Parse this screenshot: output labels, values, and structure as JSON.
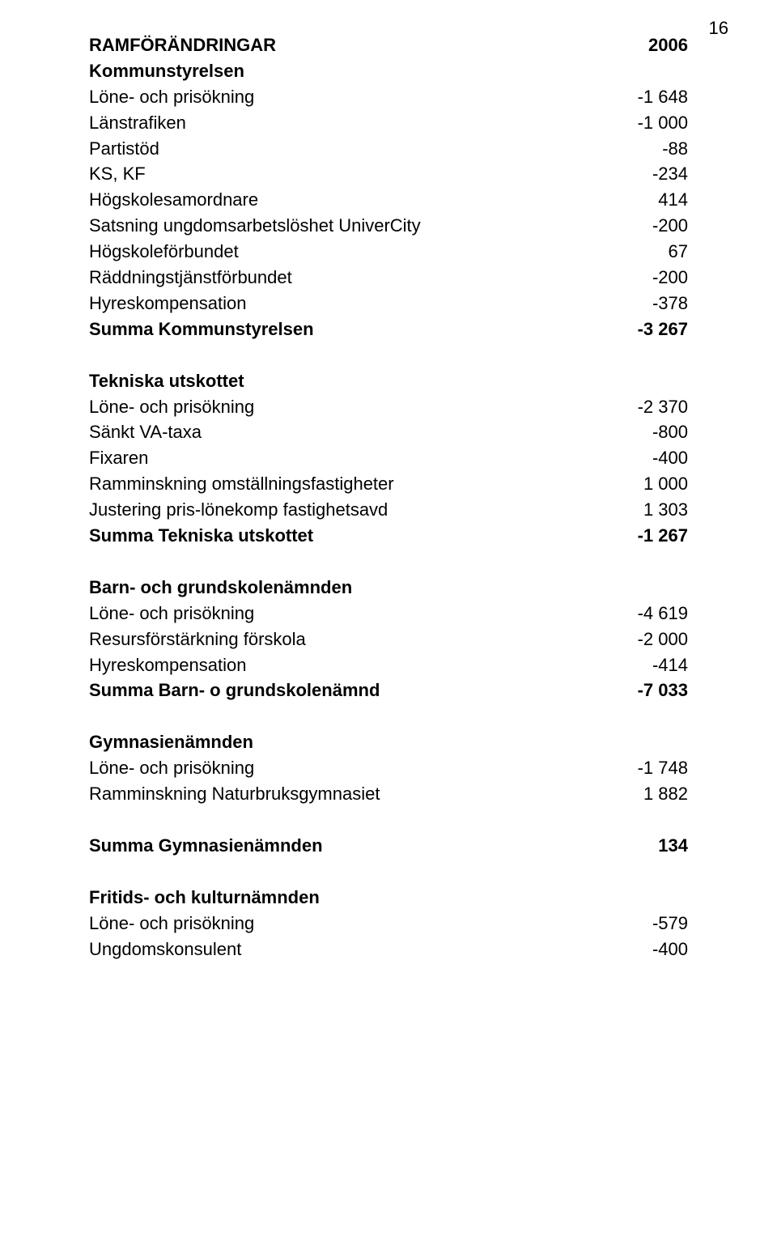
{
  "page_number": "16",
  "fontsize_pt": 17,
  "text_color": "#000000",
  "background_color": "#ffffff",
  "sections": [
    {
      "header": {
        "label": "RAMFÖRÄNDRINGAR",
        "value": "2006",
        "bold": true
      },
      "subheader": {
        "label": "Kommunstyrelsen",
        "bold": true
      },
      "rows": [
        {
          "label": "Löne- och prisökning",
          "value": "-1 648"
        },
        {
          "label": "Länstrafiken",
          "value": "-1 000"
        },
        {
          "label": "Partistöd",
          "value": "-88"
        },
        {
          "label": "KS, KF",
          "value": "-234"
        },
        {
          "label": "Högskolesamordnare",
          "value": "414"
        },
        {
          "label": "Satsning ungdomsarbetslöshet UniverCity",
          "value": "-200"
        },
        {
          "label": "Högskoleförbundet",
          "value": "67"
        },
        {
          "label": "Räddningstjänstförbundet",
          "value": "-200"
        },
        {
          "label": "Hyreskompensation",
          "value": "-378"
        }
      ],
      "total": {
        "label": "Summa Kommunstyrelsen",
        "value": "-3 267",
        "bold": true
      }
    },
    {
      "subheader": {
        "label": "Tekniska utskottet",
        "bold": true
      },
      "rows": [
        {
          "label": "Löne- och prisökning",
          "value": "-2 370"
        },
        {
          "label": "Sänkt VA-taxa",
          "value": "-800"
        },
        {
          "label": "Fixaren",
          "value": "-400"
        },
        {
          "label": "Ramminskning omställningsfastigheter",
          "value": "1 000"
        },
        {
          "label": "Justering pris-lönekomp fastighetsavd",
          "value": "1 303"
        }
      ],
      "total": {
        "label": "Summa Tekniska utskottet",
        "value": "-1 267",
        "bold": true
      }
    },
    {
      "subheader": {
        "label": "Barn- och grundskolenämnden",
        "bold": true
      },
      "rows": [
        {
          "label": "Löne- och prisökning",
          "value": "-4 619"
        },
        {
          "label": "Resursförstärkning förskola",
          "value": "-2 000"
        },
        {
          "label": "Hyreskompensation",
          "value": "-414"
        }
      ],
      "total": {
        "label": "Summa Barn- o grundskolenämnd",
        "value": "-7 033",
        "bold": true
      }
    },
    {
      "subheader": {
        "label": "Gymnasienämnden",
        "bold": true
      },
      "rows": [
        {
          "label": "Löne- och prisökning",
          "value": "-1 748"
        },
        {
          "label": "Ramminskning Naturbruksgymnasiet",
          "value": "1 882"
        }
      ],
      "total": {
        "label": "Summa Gymnasienämnden",
        "value": "134",
        "bold": true
      }
    },
    {
      "subheader": {
        "label": "Fritids- och kulturnämnden",
        "bold": true
      },
      "rows": [
        {
          "label": "Löne- och prisökning",
          "value": "-579"
        },
        {
          "label": "Ungdomskonsulent",
          "value": "-400"
        }
      ]
    }
  ]
}
